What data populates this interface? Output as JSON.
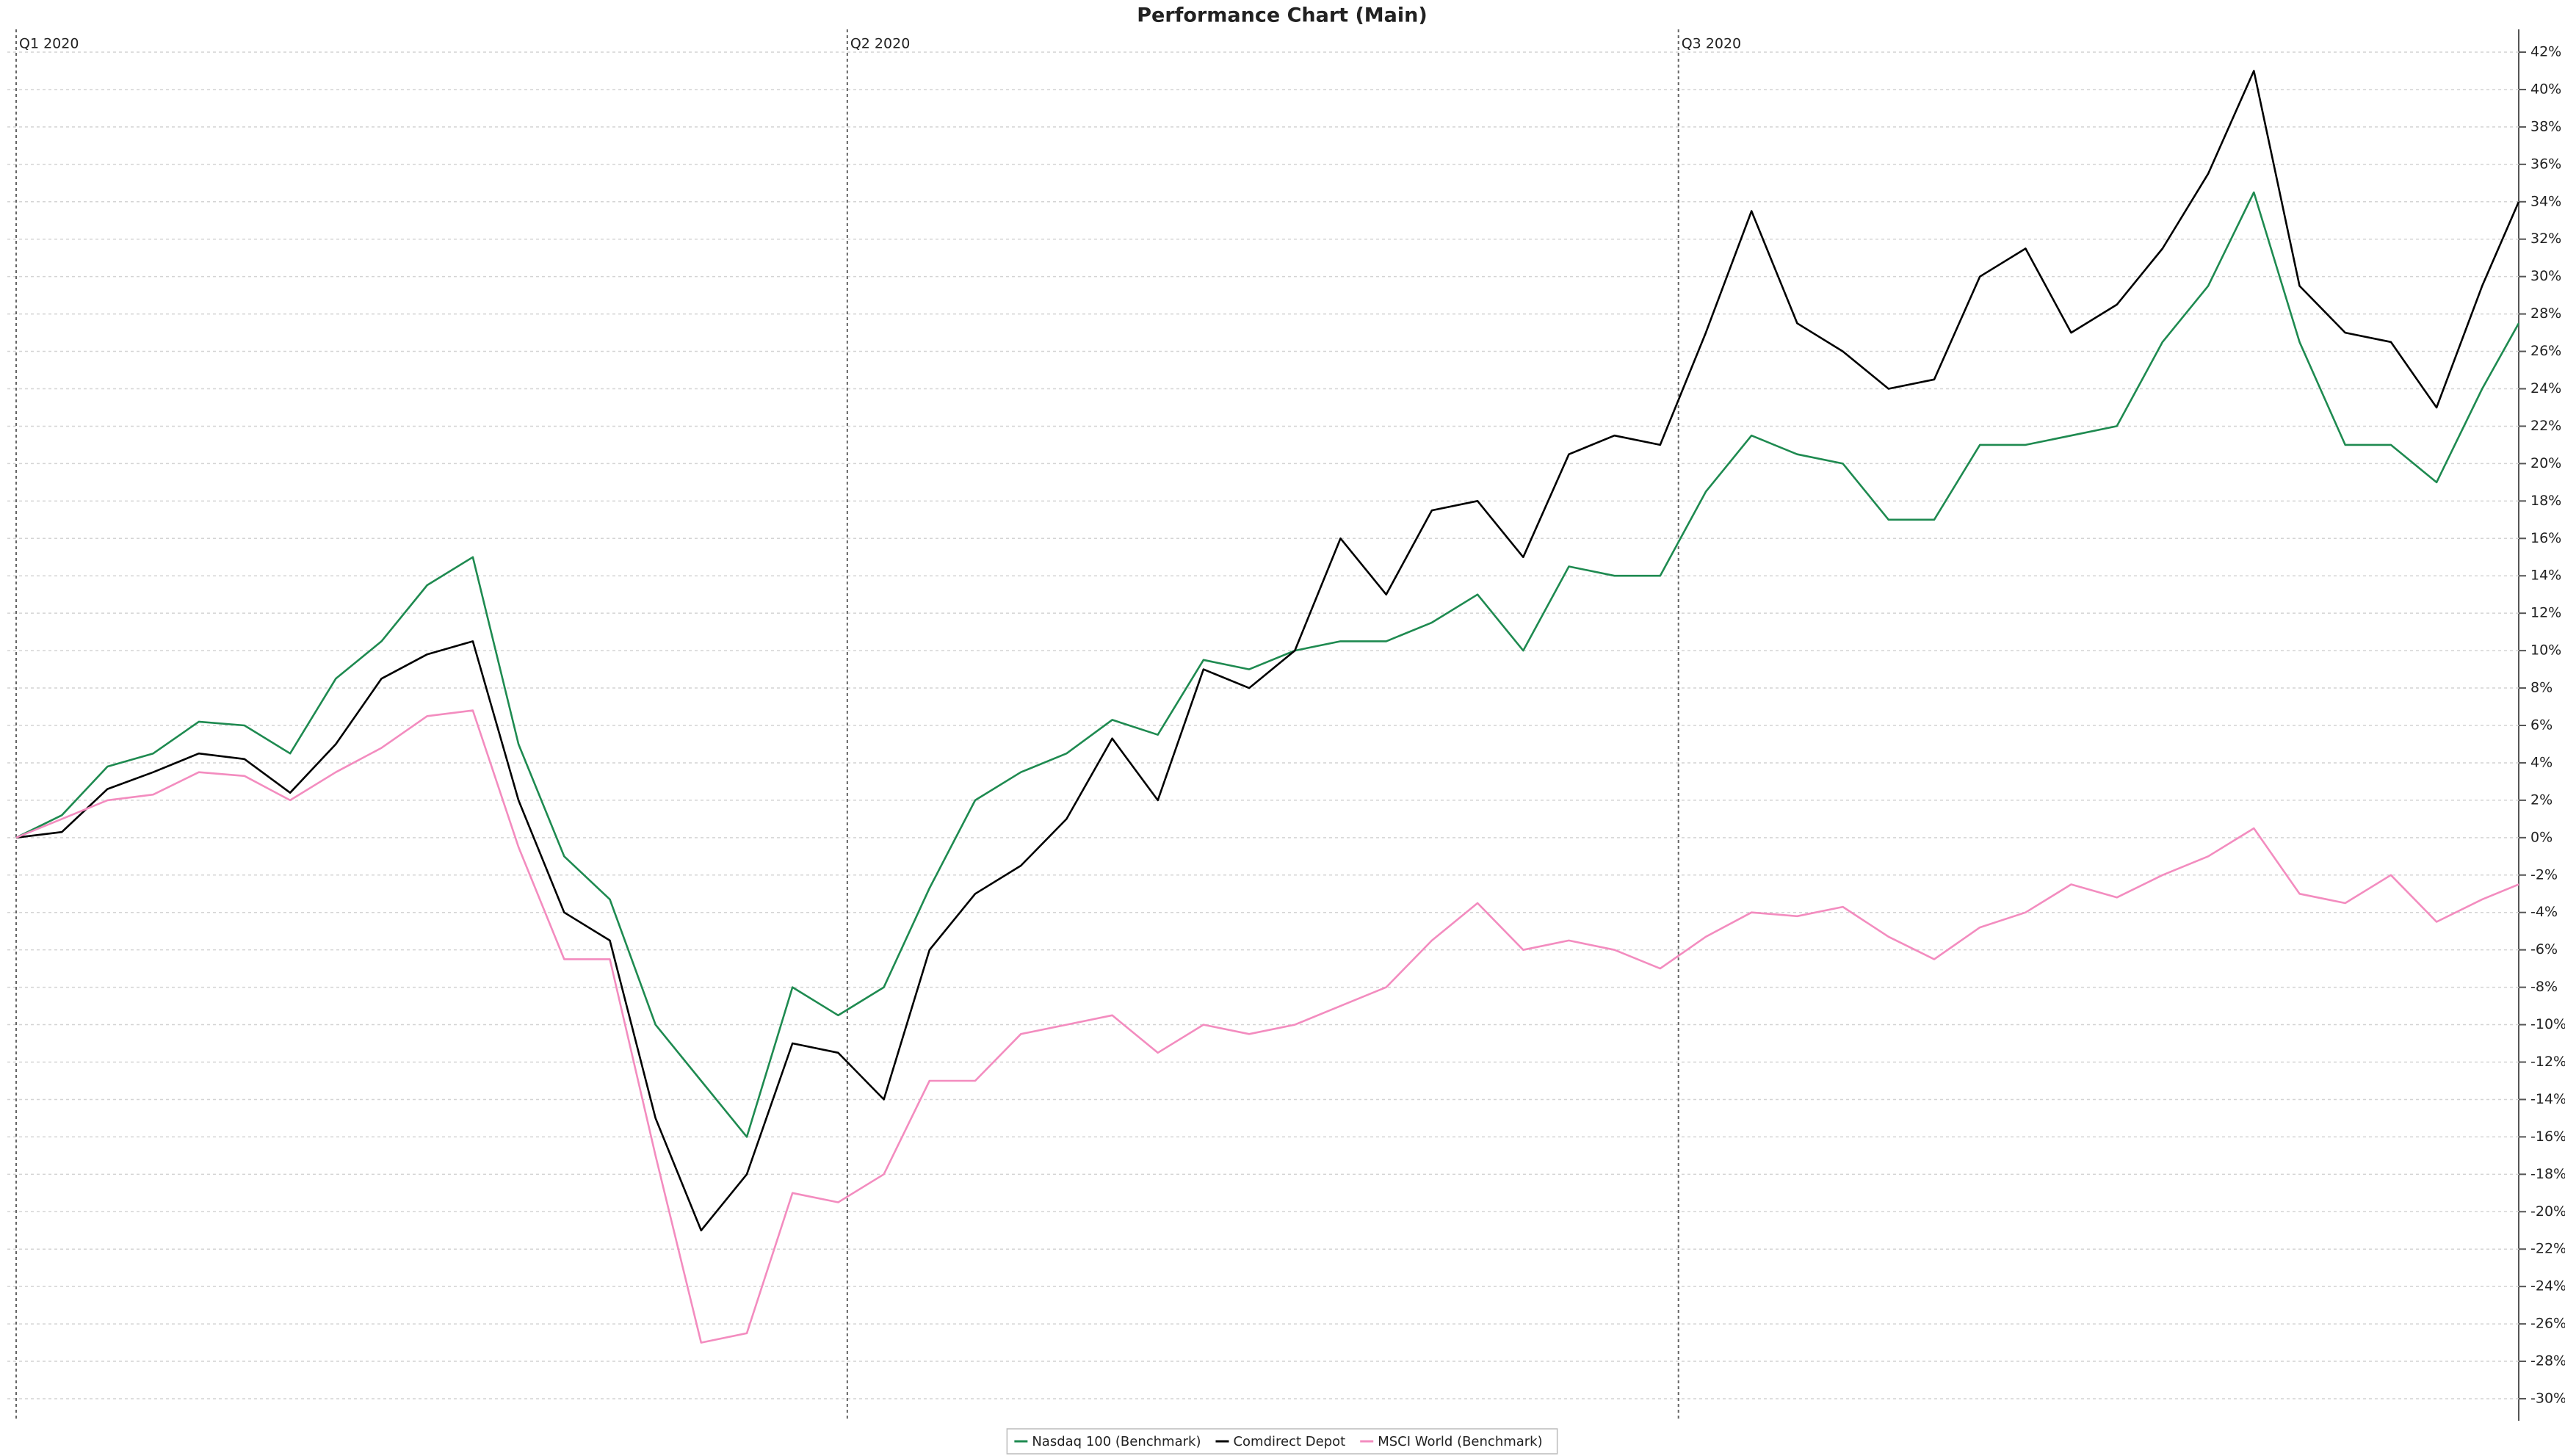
{
  "chart_data": {
    "type": "line",
    "title": "Performance Chart (Main)",
    "x": [
      0,
      5,
      10,
      15,
      20,
      25,
      30,
      35,
      40,
      45,
      50,
      55,
      60,
      65,
      70,
      75,
      80,
      85,
      90,
      95,
      100,
      105,
      110,
      115,
      120,
      125,
      130,
      135,
      140,
      145,
      150,
      155,
      160,
      165,
      170,
      175,
      180,
      185,
      190,
      195,
      200,
      205,
      210,
      215,
      220,
      225,
      230,
      235,
      240,
      245,
      250,
      255,
      260,
      265,
      270,
      274
    ],
    "xlim": [
      0,
      274
    ],
    "xticks": [
      {
        "value": 0,
        "label": "Q1 2020"
      },
      {
        "value": 91,
        "label": "Q2 2020"
      },
      {
        "value": 182,
        "label": "Q3 2020"
      }
    ],
    "ylim": [
      -30,
      42
    ],
    "yticks": [
      {
        "value": -30,
        "label": "-30%"
      },
      {
        "value": -28,
        "label": "-28%"
      },
      {
        "value": -26,
        "label": "-26%"
      },
      {
        "value": -24,
        "label": "-24%"
      },
      {
        "value": -22,
        "label": "-22%"
      },
      {
        "value": -20,
        "label": "-20%"
      },
      {
        "value": -18,
        "label": "-18%"
      },
      {
        "value": -16,
        "label": "-16%"
      },
      {
        "value": -14,
        "label": "-14%"
      },
      {
        "value": -12,
        "label": "-12%"
      },
      {
        "value": -10,
        "label": "-10%"
      },
      {
        "value": -8,
        "label": "-8%"
      },
      {
        "value": -6,
        "label": "-6%"
      },
      {
        "value": -4,
        "label": "-4%"
      },
      {
        "value": -2,
        "label": "-2%"
      },
      {
        "value": 0,
        "label": "0%"
      },
      {
        "value": 2,
        "label": "2%"
      },
      {
        "value": 4,
        "label": "4%"
      },
      {
        "value": 6,
        "label": "6%"
      },
      {
        "value": 8,
        "label": "8%"
      },
      {
        "value": 10,
        "label": "10%"
      },
      {
        "value": 12,
        "label": "12%"
      },
      {
        "value": 14,
        "label": "14%"
      },
      {
        "value": 16,
        "label": "16%"
      },
      {
        "value": 18,
        "label": "18%"
      },
      {
        "value": 20,
        "label": "20%"
      },
      {
        "value": 22,
        "label": "22%"
      },
      {
        "value": 24,
        "label": "24%"
      },
      {
        "value": 26,
        "label": "26%"
      },
      {
        "value": 28,
        "label": "28%"
      },
      {
        "value": 30,
        "label": "30%"
      },
      {
        "value": 32,
        "label": "32%"
      },
      {
        "value": 34,
        "label": "34%"
      },
      {
        "value": 36,
        "label": "36%"
      },
      {
        "value": 38,
        "label": "38%"
      },
      {
        "value": 40,
        "label": "40%"
      },
      {
        "value": 42,
        "label": "42%"
      }
    ],
    "grid": true,
    "series": [
      {
        "name": "Nasdaq 100 (Benchmark)",
        "color": "#1e8a50",
        "values": [
          0,
          1.2,
          3.8,
          4.5,
          6.2,
          6,
          4.5,
          8.5,
          10.5,
          13.5,
          15,
          5,
          -1,
          -3.3,
          -10,
          -13,
          -16,
          -8,
          -9.5,
          -8,
          -2.7,
          2,
          3.5,
          4.5,
          6.3,
          5.5,
          9.5,
          9,
          10,
          10.5,
          10.5,
          11.5,
          13,
          10,
          14.5,
          14,
          14,
          18.5,
          21.5,
          20.5,
          20,
          17,
          17,
          21,
          21,
          21.5,
          22,
          26.5,
          29.5,
          34.5,
          26.5,
          21,
          21,
          19,
          24,
          27.5
        ]
      },
      {
        "name": "Comdirect Depot",
        "color": "#000000",
        "values": [
          0,
          0.3,
          2.6,
          3.5,
          4.5,
          4.2,
          2.4,
          5,
          8.5,
          9.8,
          10.5,
          2,
          -4,
          -5.5,
          -15,
          -21,
          -18,
          -11,
          -11.5,
          -14,
          -6,
          -3,
          -1.5,
          1,
          5.3,
          2,
          9,
          8,
          10,
          16,
          13,
          17.5,
          18,
          15,
          20.5,
          21.5,
          21,
          27,
          33.5,
          27.5,
          26,
          24,
          24.5,
          30,
          31.5,
          27,
          28.5,
          31.5,
          35.5,
          41,
          29.5,
          27,
          26.5,
          23,
          29.5,
          34
        ]
      },
      {
        "name": "MSCI World (Benchmark)",
        "color": "#f38cbf",
        "values": [
          0,
          1,
          2,
          2.3,
          3.5,
          3.3,
          2,
          3.5,
          4.8,
          6.5,
          6.8,
          -0.5,
          -6.5,
          -6.5,
          -17,
          -27,
          -26.5,
          -19,
          -19.5,
          -18,
          -13,
          -13,
          -10.5,
          -10,
          -9.5,
          -11.5,
          -10,
          -10.5,
          -10,
          -9,
          -8,
          -5.5,
          -3.5,
          -6,
          -5.5,
          -6,
          -7,
          -5.3,
          -4,
          -4.2,
          -3.7,
          -5.3,
          -6.5,
          -4.8,
          -4,
          -2.5,
          -3.2,
          -2,
          -1,
          0.5,
          -3,
          -3.5,
          -2,
          -4.5,
          -3.3,
          -2.5
        ]
      }
    ]
  }
}
